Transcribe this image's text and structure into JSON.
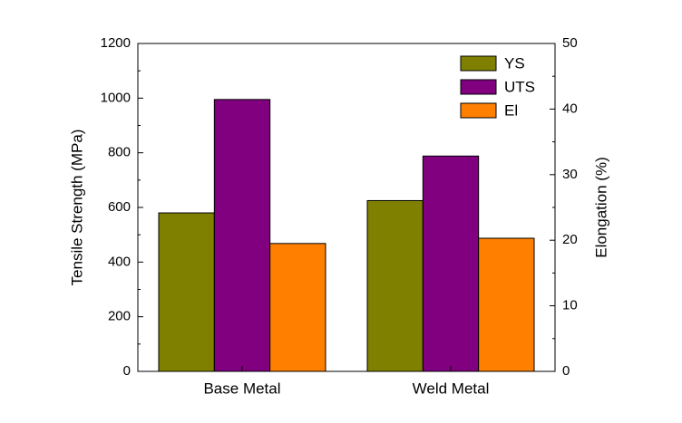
{
  "chart_data": {
    "type": "bar",
    "y_label": "Tensile Strength (MPa)",
    "y2_label": "Elongation (%)",
    "categories": [
      "Base Metal",
      "Weld Metal"
    ],
    "series": [
      {
        "name": "YS",
        "color": "#808000",
        "values": [
          580,
          625
        ]
      },
      {
        "name": "UTS",
        "color": "#800080",
        "values": [
          995,
          788
        ]
      },
      {
        "name": "El",
        "color": "#ff8000",
        "values": [
          19.5,
          20.3
        ],
        "axis": "y2"
      }
    ],
    "ylim": [
      0,
      1200
    ],
    "yticks": [
      0,
      200,
      400,
      600,
      800,
      1000,
      1200
    ],
    "y2lim": [
      0,
      50
    ],
    "y2ticks": [
      0,
      10,
      20,
      30,
      40,
      50
    ],
    "legend": "upper right"
  }
}
